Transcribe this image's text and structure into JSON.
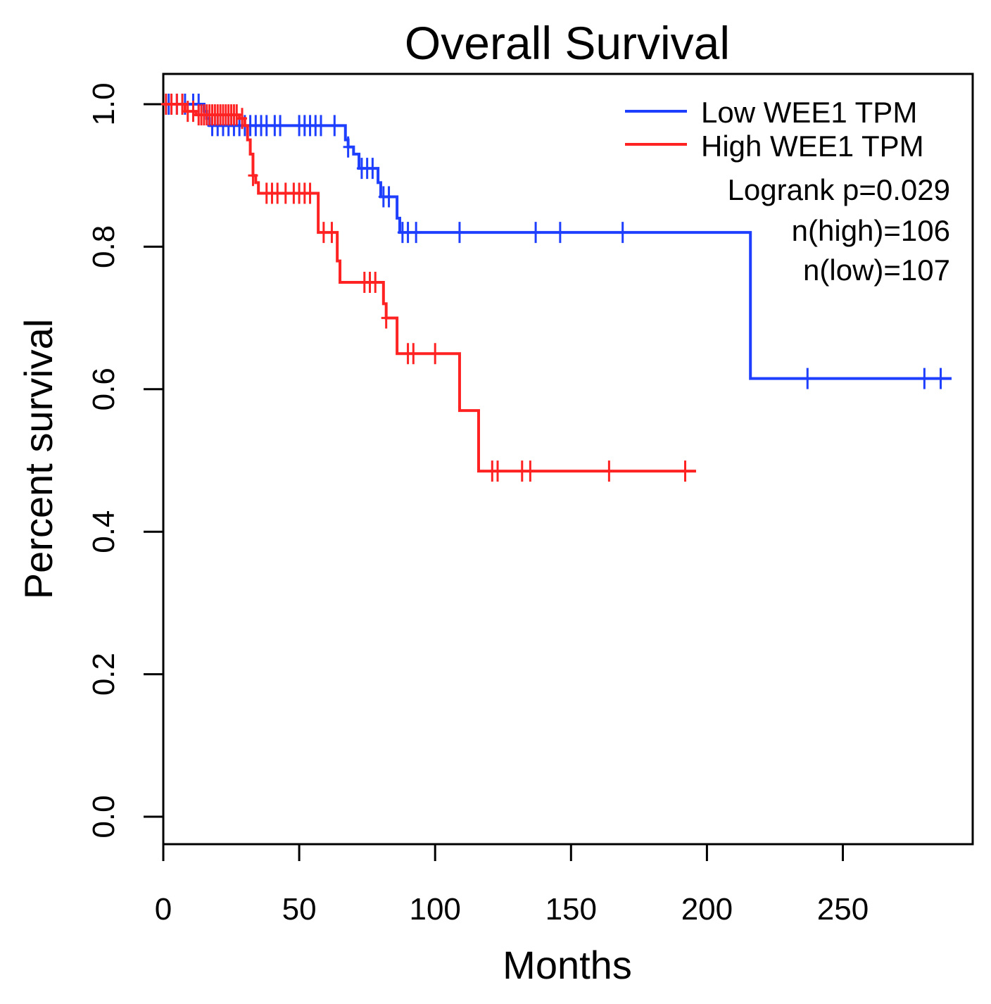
{
  "chart_data": {
    "type": "line",
    "subtype": "kaplan-meier",
    "title": "Overall Survival",
    "xlabel": "Months",
    "ylabel": "Percent survival",
    "xlim": [
      0,
      300
    ],
    "ylim": [
      0.0,
      1.0
    ],
    "xticks": [
      0,
      50,
      100,
      150,
      200,
      250
    ],
    "yticks": [
      0.0,
      0.2,
      0.4,
      0.6,
      0.8,
      1.0
    ],
    "xtick_labels": [
      "0",
      "50",
      "100",
      "150",
      "200",
      "250"
    ],
    "ytick_labels": [
      "0.0",
      "0.2",
      "0.4",
      "0.6",
      "0.8",
      "1.0"
    ],
    "grid": false,
    "legend_position": "top-right",
    "series": [
      {
        "name": "Low WEE1 TPM",
        "color": "#1f3fff",
        "steps": [
          [
            0,
            1.0
          ],
          [
            15,
            0.99
          ],
          [
            16,
            0.98
          ],
          [
            17,
            0.97
          ],
          [
            66,
            0.97
          ],
          [
            67,
            0.95
          ],
          [
            68,
            0.94
          ],
          [
            70,
            0.93
          ],
          [
            72,
            0.91
          ],
          [
            78,
            0.91
          ],
          [
            79,
            0.89
          ],
          [
            80,
            0.87
          ],
          [
            85,
            0.87
          ],
          [
            86,
            0.84
          ],
          [
            87,
            0.82
          ],
          [
            216,
            0.82
          ],
          [
            216,
            0.615
          ],
          [
            290,
            0.615
          ]
        ],
        "censors": [
          [
            2,
            1.0
          ],
          [
            5,
            1.0
          ],
          [
            8,
            1.0
          ],
          [
            11,
            1.0
          ],
          [
            13,
            1.0
          ],
          [
            18,
            0.97
          ],
          [
            20,
            0.97
          ],
          [
            22,
            0.97
          ],
          [
            24,
            0.97
          ],
          [
            26,
            0.97
          ],
          [
            28,
            0.97
          ],
          [
            30,
            0.97
          ],
          [
            32,
            0.97
          ],
          [
            34,
            0.97
          ],
          [
            36,
            0.97
          ],
          [
            38,
            0.97
          ],
          [
            41,
            0.97
          ],
          [
            43,
            0.97
          ],
          [
            50,
            0.97
          ],
          [
            52,
            0.97
          ],
          [
            54,
            0.97
          ],
          [
            56,
            0.97
          ],
          [
            58,
            0.97
          ],
          [
            63,
            0.97
          ],
          [
            68,
            0.94
          ],
          [
            73,
            0.91
          ],
          [
            75,
            0.91
          ],
          [
            77,
            0.91
          ],
          [
            81,
            0.87
          ],
          [
            83,
            0.87
          ],
          [
            88,
            0.82
          ],
          [
            90,
            0.82
          ],
          [
            93,
            0.82
          ],
          [
            109,
            0.82
          ],
          [
            137,
            0.82
          ],
          [
            146,
            0.82
          ],
          [
            169,
            0.82
          ],
          [
            237,
            0.615
          ],
          [
            280,
            0.615
          ],
          [
            286,
            0.615
          ]
        ]
      },
      {
        "name": "High WEE1 TPM",
        "color": "#ff2222",
        "steps": [
          [
            0,
            1.0
          ],
          [
            8,
            0.99
          ],
          [
            12,
            0.985
          ],
          [
            28,
            0.98
          ],
          [
            30,
            0.97
          ],
          [
            31,
            0.95
          ],
          [
            32,
            0.93
          ],
          [
            33,
            0.9
          ],
          [
            34,
            0.89
          ],
          [
            35,
            0.875
          ],
          [
            56,
            0.875
          ],
          [
            57,
            0.82
          ],
          [
            63,
            0.82
          ],
          [
            64,
            0.78
          ],
          [
            65,
            0.75
          ],
          [
            80,
            0.75
          ],
          [
            81,
            0.72
          ],
          [
            82,
            0.7
          ],
          [
            85,
            0.7
          ],
          [
            86,
            0.65
          ],
          [
            108,
            0.65
          ],
          [
            109,
            0.57
          ],
          [
            116,
            0.57
          ],
          [
            116,
            0.485
          ],
          [
            196,
            0.485
          ]
        ],
        "censors": [
          [
            1,
            1.0
          ],
          [
            3,
            1.0
          ],
          [
            5,
            1.0
          ],
          [
            7,
            1.0
          ],
          [
            9,
            0.99
          ],
          [
            11,
            0.99
          ],
          [
            13,
            0.985
          ],
          [
            14,
            0.985
          ],
          [
            15,
            0.985
          ],
          [
            16,
            0.985
          ],
          [
            17,
            0.985
          ],
          [
            18,
            0.985
          ],
          [
            19,
            0.985
          ],
          [
            20,
            0.985
          ],
          [
            21,
            0.985
          ],
          [
            22,
            0.985
          ],
          [
            23,
            0.985
          ],
          [
            24,
            0.985
          ],
          [
            25,
            0.985
          ],
          [
            26,
            0.985
          ],
          [
            27,
            0.985
          ],
          [
            29,
            0.98
          ],
          [
            33,
            0.9
          ],
          [
            38,
            0.875
          ],
          [
            40,
            0.875
          ],
          [
            42,
            0.875
          ],
          [
            45,
            0.875
          ],
          [
            48,
            0.875
          ],
          [
            50,
            0.875
          ],
          [
            52,
            0.875
          ],
          [
            54,
            0.875
          ],
          [
            59,
            0.82
          ],
          [
            62,
            0.82
          ],
          [
            74,
            0.75
          ],
          [
            76,
            0.75
          ],
          [
            78,
            0.75
          ],
          [
            82,
            0.7
          ],
          [
            90,
            0.65
          ],
          [
            92,
            0.65
          ],
          [
            100,
            0.65
          ],
          [
            121,
            0.485
          ],
          [
            123,
            0.485
          ],
          [
            132,
            0.485
          ],
          [
            135,
            0.485
          ],
          [
            164,
            0.485
          ],
          [
            192,
            0.485
          ]
        ]
      }
    ],
    "annotations": [
      "Logrank p=0.029",
      "n(high)=106",
      "n(low)=107"
    ]
  }
}
